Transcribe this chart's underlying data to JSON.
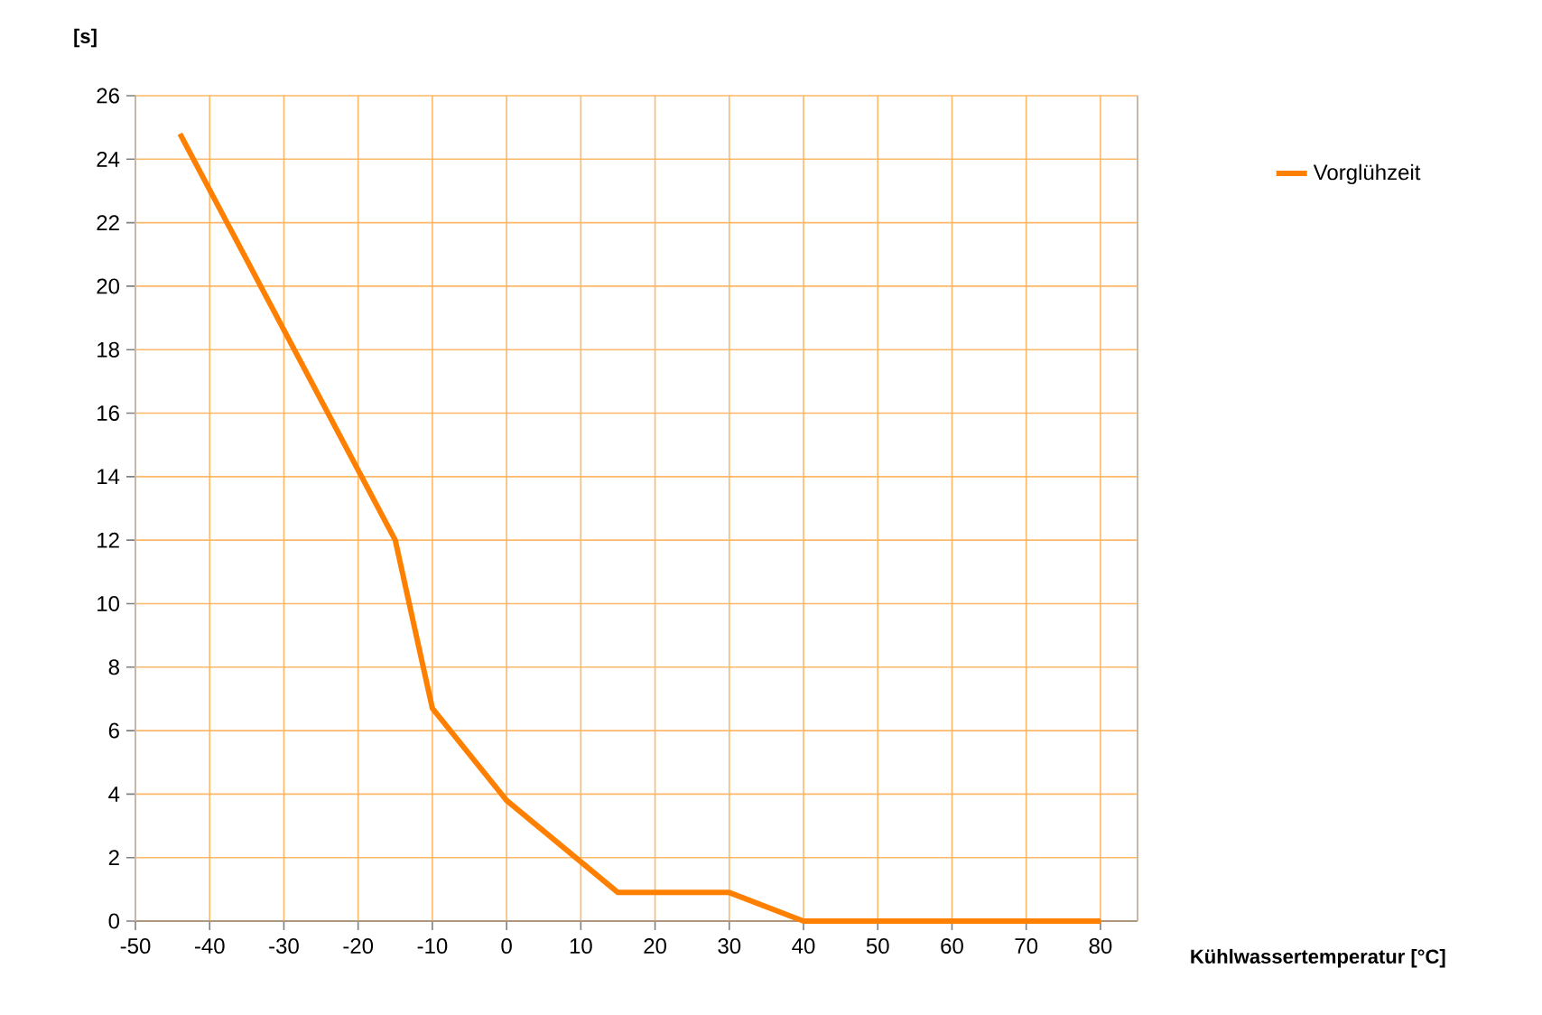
{
  "chart_data": {
    "type": "line",
    "xlabel": "Kühlwassertemperatur [°C]",
    "ylabel": "[s]",
    "x": [
      -44,
      -15,
      -10,
      0,
      15,
      30,
      40,
      80
    ],
    "series": [
      {
        "name": "Vorglühzeit",
        "color": "#ff8000",
        "values": [
          24.8,
          12,
          6.7,
          3.8,
          0.9,
          0.9,
          0,
          0
        ]
      }
    ],
    "xlim": [
      -50,
      85
    ],
    "ylim": [
      0,
      26
    ],
    "xticks": [
      -50,
      -40,
      -30,
      -20,
      -10,
      0,
      10,
      20,
      30,
      40,
      50,
      60,
      70,
      80
    ],
    "yticks": [
      0,
      2,
      4,
      6,
      8,
      10,
      12,
      14,
      16,
      18,
      20,
      22,
      24,
      26
    ],
    "grid": true,
    "legend": "top right",
    "marker": "none",
    "line_style": "solid"
  }
}
